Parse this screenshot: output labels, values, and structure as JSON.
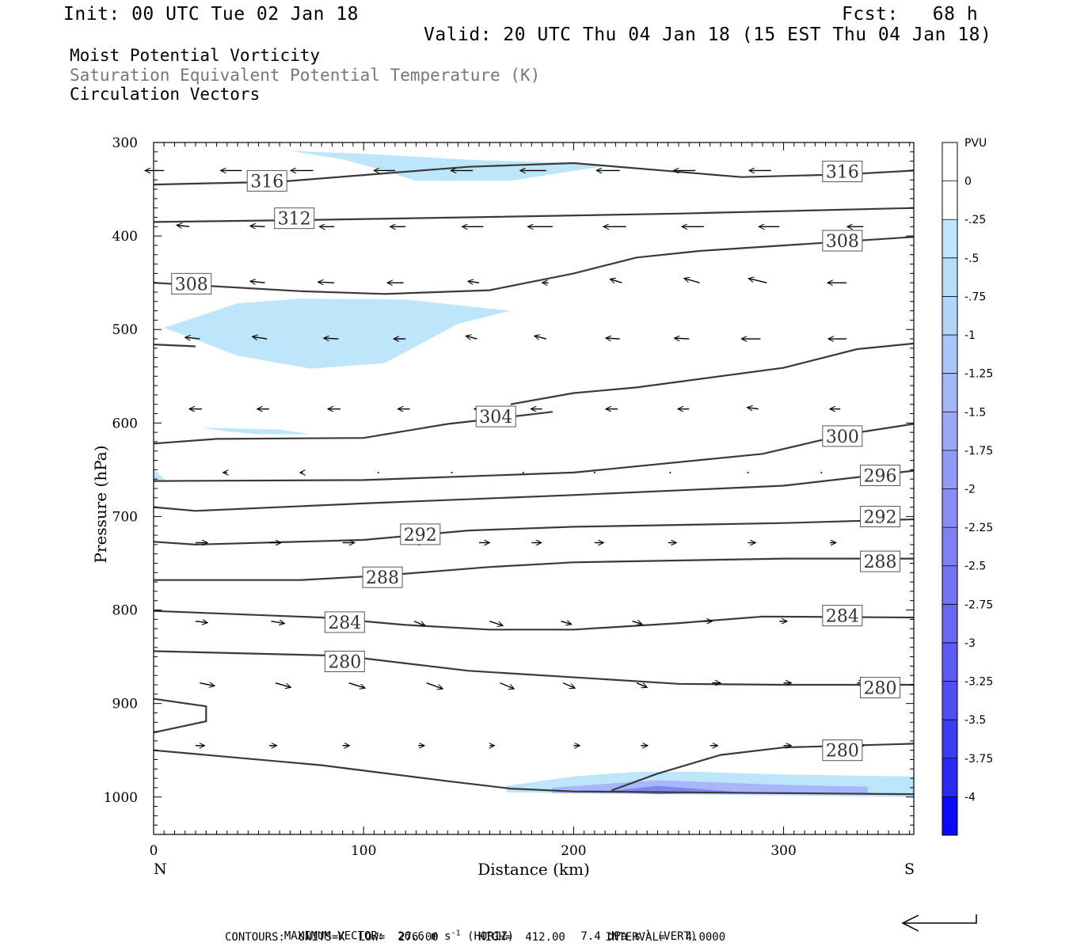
{
  "header": {
    "init": "Init: 00 UTC Tue 02 Jan 18",
    "fcst": "Fcst:   68 h",
    "valid": "Valid: 20 UTC Thu 04 Jan 18 (15 EST Thu 04 Jan 18)",
    "fields": [
      "Moist Potential Vorticity",
      "Saturation Equivalent Potential Temperature (K)",
      "Circulation Vectors"
    ]
  },
  "footer": {
    "max_vector_label": "MAXIMUM VECTOR:",
    "horiz_value": "26.6 m s",
    "horiz_exp": "-1",
    "horiz_tail": " (HORIZ)",
    "vert_value": "7.4 dPa s",
    "vert_exp": "-1",
    "vert_tail": " (VERT)",
    "contours": "CONTOURS:  UNITS=K  LOW=  276.00      HIGH=  412.00      INTERVAL=   4.0000"
  },
  "colors": {
    "contour": "#3a3a3a",
    "mpv_light": "#bde6fa",
    "mpv_mid": "#aab6fa",
    "mpv_strong": "#7f86f6"
  },
  "chart_data": {
    "type": "cross-section",
    "xlabel": "Distance (km)",
    "ylabel": "Pressure (hPa)",
    "xlim": [
      0,
      362
    ],
    "ylim": [
      1040,
      300
    ],
    "x_ticks": [
      0,
      100,
      200,
      300
    ],
    "y_ticks": [
      300,
      400,
      500,
      600,
      700,
      800,
      900,
      1000
    ],
    "x_end_labels": {
      "left": "N",
      "right": "S"
    },
    "colorbar": {
      "unit": "PVU",
      "labels": [
        "0",
        "-.25",
        "-.5",
        "-.75",
        "-1",
        "-1.25",
        "-1.5",
        "-1.75",
        "-2",
        "-2.25",
        "-2.5",
        "-2.75",
        "-3",
        "-3.25",
        "-3.5",
        "-3.75",
        "-4"
      ],
      "colors": [
        "#ffffff",
        "#ffffff",
        "#bde6fa",
        "#b7def9",
        "#b2d6f9",
        "#aac6f9",
        "#a2b6f8",
        "#9aa8f8",
        "#929af7",
        "#8a8cf7",
        "#7f80f6",
        "#7474f6",
        "#6868f5",
        "#5c5cf5",
        "#4f4ff5",
        "#3c3cf5",
        "#2a2af7",
        "#0a0af9"
      ]
    },
    "contours": [
      {
        "value": 316,
        "points": [
          [
            0,
            345
          ],
          [
            60,
            342
          ],
          [
            110,
            333
          ],
          [
            150,
            326
          ],
          [
            200,
            322
          ],
          [
            280,
            337
          ],
          [
            330,
            334
          ],
          [
            362,
            330
          ]
        ],
        "labels": [
          [
            54,
            341
          ],
          [
            328,
            331
          ]
        ]
      },
      {
        "value": 312,
        "points": [
          [
            0,
            385
          ],
          [
            70,
            383
          ],
          [
            150,
            380
          ],
          [
            250,
            376
          ],
          [
            362,
            370
          ]
        ],
        "labels": [
          [
            67,
            381
          ]
        ]
      },
      {
        "value": 308,
        "points": [
          [
            0,
            450
          ],
          [
            70,
            459
          ],
          [
            110,
            462
          ],
          [
            160,
            458
          ],
          [
            200,
            440
          ],
          [
            230,
            423
          ],
          [
            260,
            416
          ],
          [
            362,
            401
          ]
        ],
        "labels": [
          [
            18,
            451
          ],
          [
            328,
            405
          ]
        ]
      },
      {
        "value": 304,
        "points": [
          [
            0,
            516
          ],
          [
            20,
            518
          ]
        ]
      },
      {
        "value": 304,
        "points": [
          [
            170,
            580
          ],
          [
            200,
            568
          ],
          [
            230,
            562
          ],
          [
            300,
            541
          ],
          [
            335,
            521
          ],
          [
            362,
            515
          ]
        ]
      },
      {
        "value": 304,
        "points": [
          [
            0,
            622
          ],
          [
            30,
            617
          ],
          [
            100,
            616
          ],
          [
            140,
            601
          ],
          [
            160,
            596
          ],
          [
            190,
            588
          ]
        ],
        "labels": [
          [
            163,
            593
          ]
        ]
      },
      {
        "value": 300,
        "points": [
          [
            0,
            662
          ],
          [
            100,
            661
          ],
          [
            200,
            653
          ],
          [
            290,
            633
          ],
          [
            330,
            612
          ],
          [
            362,
            601
          ]
        ],
        "labels": [
          [
            328,
            614
          ]
        ]
      },
      {
        "value": 296,
        "points": [
          [
            0,
            690
          ],
          [
            20,
            694
          ],
          [
            100,
            686
          ],
          [
            200,
            677
          ],
          [
            300,
            667
          ],
          [
            362,
            651
          ]
        ],
        "labels": [
          [
            346,
            656
          ]
        ]
      },
      {
        "value": 292,
        "points": [
          [
            0,
            727
          ],
          [
            20,
            730
          ],
          [
            100,
            725
          ],
          [
            150,
            715
          ],
          [
            200,
            711
          ],
          [
            300,
            707
          ],
          [
            362,
            703
          ]
        ],
        "labels": [
          [
            127,
            719
          ],
          [
            346,
            700
          ]
        ]
      },
      {
        "value": 288,
        "points": [
          [
            0,
            768
          ],
          [
            70,
            768
          ],
          [
            110,
            763
          ],
          [
            160,
            754
          ],
          [
            200,
            749
          ],
          [
            300,
            745
          ],
          [
            362,
            745
          ]
        ],
        "labels": [
          [
            109,
            765
          ],
          [
            346,
            748
          ]
        ]
      },
      {
        "value": 284,
        "points": [
          [
            0,
            801
          ],
          [
            80,
            808
          ],
          [
            120,
            816
          ],
          [
            160,
            821
          ],
          [
            200,
            821
          ],
          [
            250,
            814
          ],
          [
            290,
            807
          ],
          [
            362,
            808
          ]
        ],
        "labels": [
          [
            91,
            813
          ],
          [
            328,
            806
          ]
        ]
      },
      {
        "value": 280,
        "points": [
          [
            0,
            844
          ],
          [
            90,
            849
          ],
          [
            150,
            865
          ],
          [
            250,
            879
          ],
          [
            300,
            880
          ],
          [
            362,
            880
          ]
        ],
        "labels": [
          [
            91,
            855
          ],
          [
            346,
            883
          ]
        ]
      },
      {
        "value": 280,
        "points": [
          [
            0,
            895
          ],
          [
            25,
            903
          ],
          [
            25,
            919
          ],
          [
            0,
            931
          ]
        ]
      },
      {
        "value": 280,
        "points": [
          [
            218,
            993
          ],
          [
            240,
            975
          ],
          [
            270,
            955
          ],
          [
            300,
            947
          ],
          [
            362,
            943
          ]
        ],
        "labels": [
          [
            328,
            950
          ]
        ]
      },
      {
        "value": 280,
        "points": [
          [
            0,
            950
          ],
          [
            80,
            966
          ],
          [
            140,
            983
          ],
          [
            170,
            991
          ],
          [
            200,
            994
          ],
          [
            362,
            997
          ]
        ]
      }
    ],
    "mpv_areas": [
      {
        "pvu": -0.5,
        "points": [
          [
            65,
            309
          ],
          [
            100,
            312
          ],
          [
            155,
            319
          ],
          [
            203,
            322
          ],
          [
            215,
            325
          ],
          [
            170,
            341
          ],
          [
            125,
            341
          ],
          [
            105,
            327
          ],
          [
            90,
            318
          ]
        ]
      },
      {
        "pvu": -0.5,
        "points": [
          [
            5,
            498
          ],
          [
            40,
            472
          ],
          [
            70,
            467
          ],
          [
            120,
            468
          ],
          [
            170,
            480
          ],
          [
            145,
            494
          ],
          [
            130,
            512
          ],
          [
            110,
            536
          ],
          [
            75,
            542
          ],
          [
            40,
            528
          ]
        ]
      },
      {
        "pvu": -0.5,
        "points": [
          [
            22,
            605
          ],
          [
            60,
            607
          ],
          [
            75,
            612
          ],
          [
            50,
            612
          ],
          [
            35,
            609
          ]
        ]
      },
      {
        "pvu": -0.5,
        "points": [
          [
            0,
            650
          ],
          [
            6,
            662
          ],
          [
            0,
            662
          ]
        ]
      },
      {
        "pvu": -0.5,
        "points": [
          [
            168,
            988
          ],
          [
            200,
            978
          ],
          [
            230,
            973
          ],
          [
            260,
            973
          ],
          [
            300,
            976
          ],
          [
            362,
            978
          ],
          [
            362,
            1000
          ],
          [
            168,
            995
          ]
        ]
      },
      {
        "pvu": -1.0,
        "points": [
          [
            190,
            990
          ],
          [
            240,
            982
          ],
          [
            300,
            987
          ],
          [
            340,
            989
          ],
          [
            340,
            997
          ],
          [
            190,
            996
          ]
        ]
      },
      {
        "pvu": -1.5,
        "points": [
          [
            215,
            994
          ],
          [
            240,
            988
          ],
          [
            280,
            995
          ],
          [
            240,
            997
          ]
        ]
      }
    ],
    "vectors": [
      {
        "p": 330,
        "x0": 36,
        "x": [
          5,
          42,
          76,
          115,
          152,
          187,
          222,
          258,
          294,
          329
        ],
        "dx": [
          -26,
          -29,
          -31,
          -29,
          -30,
          -36,
          -32,
          -30,
          -30,
          -29
        ],
        "dy": [
          0,
          0,
          0,
          0,
          0,
          0,
          0,
          0,
          0,
          0
        ]
      },
      {
        "p": 390,
        "x0": 28,
        "x": [
          17,
          53,
          86,
          120,
          157,
          190,
          225,
          262,
          298,
          338
        ],
        "dx": [
          -17,
          -20,
          -20,
          -21,
          -29,
          -34,
          -31,
          -30,
          -28,
          -22
        ],
        "dy": [
          -2,
          -1,
          0,
          0,
          0,
          0,
          0,
          0,
          0,
          0
        ]
      },
      {
        "p": 450,
        "x0": 22,
        "x": [
          17,
          53,
          86,
          119,
          155,
          188,
          223,
          260,
          292,
          330
        ],
        "dx": [
          -12,
          -20,
          -22,
          -22,
          -15,
          -8,
          -16,
          -21,
          -25,
          -26
        ],
        "dy": [
          0,
          -2,
          -1,
          0,
          -2,
          0,
          -5,
          -6,
          -6,
          0
        ]
      },
      {
        "p": 510,
        "x0": 18,
        "x": [
          22,
          54,
          88,
          120,
          154,
          187,
          222,
          255,
          289,
          330
        ],
        "dx": [
          -20,
          -20,
          -20,
          -16,
          -15,
          -16,
          -19,
          -20,
          -26,
          -25
        ],
        "dy": [
          -2,
          -3,
          -1,
          0,
          -4,
          -4,
          -1,
          -1,
          0,
          0
        ]
      },
      {
        "p": 585,
        "x0": 12,
        "x": [
          23,
          55,
          89,
          122,
          158,
          185,
          221,
          255,
          288,
          327
        ],
        "dx": [
          -17,
          -16,
          -17,
          -16,
          -15,
          -15,
          -16,
          -15,
          -15,
          -14
        ],
        "dy": [
          0,
          0,
          0,
          0,
          0,
          0,
          0,
          0,
          -2,
          0
        ]
      },
      {
        "p": 653,
        "x0": 8,
        "x": [
          35,
          71,
          107,
          142,
          176,
          210,
          246,
          283,
          318,
          350
        ],
        "dx": [
          -5,
          -3,
          0,
          0,
          0,
          0,
          0,
          0,
          0,
          0
        ],
        "dy": [
          0,
          0,
          0,
          0,
          0,
          0,
          0,
          0,
          0,
          0
        ]
      },
      {
        "p": 728,
        "x0": 8,
        "x": [
          20,
          55,
          90,
          124,
          155,
          180,
          210,
          245,
          283,
          322
        ],
        "dx": [
          16,
          16,
          16,
          13,
          14,
          13,
          12,
          11,
          10,
          8
        ],
        "dy": [
          0,
          0,
          0,
          0,
          0,
          0,
          0,
          0,
          0,
          0
        ]
      },
      {
        "p": 812,
        "x0": 8,
        "x": [
          20,
          56,
          90,
          124,
          160,
          194,
          228,
          262,
          298,
          330
        ],
        "dx": [
          16,
          18,
          20,
          15,
          18,
          14,
          13,
          11,
          10,
          5
        ],
        "dy": [
          2,
          3,
          4,
          6,
          6,
          4,
          4,
          0,
          0,
          0
        ]
      },
      {
        "p": 878,
        "x0": 8,
        "x": [
          22,
          58,
          93,
          130,
          165,
          195,
          230,
          266,
          300,
          335
        ],
        "dx": [
          20,
          21,
          22,
          22,
          19,
          16,
          14,
          11,
          10,
          9
        ],
        "dy": [
          4,
          6,
          7,
          8,
          8,
          7,
          6,
          0,
          0,
          0
        ]
      },
      {
        "p": 945,
        "x0": 8,
        "x": [
          20,
          55,
          90,
          126,
          160,
          200,
          232,
          265,
          300,
          335
        ],
        "dx": [
          12,
          10,
          9,
          8,
          6,
          8,
          9,
          10,
          10,
          9
        ],
        "dy": [
          0,
          0,
          0,
          0,
          0,
          0,
          0,
          0,
          0,
          0
        ]
      }
    ]
  }
}
